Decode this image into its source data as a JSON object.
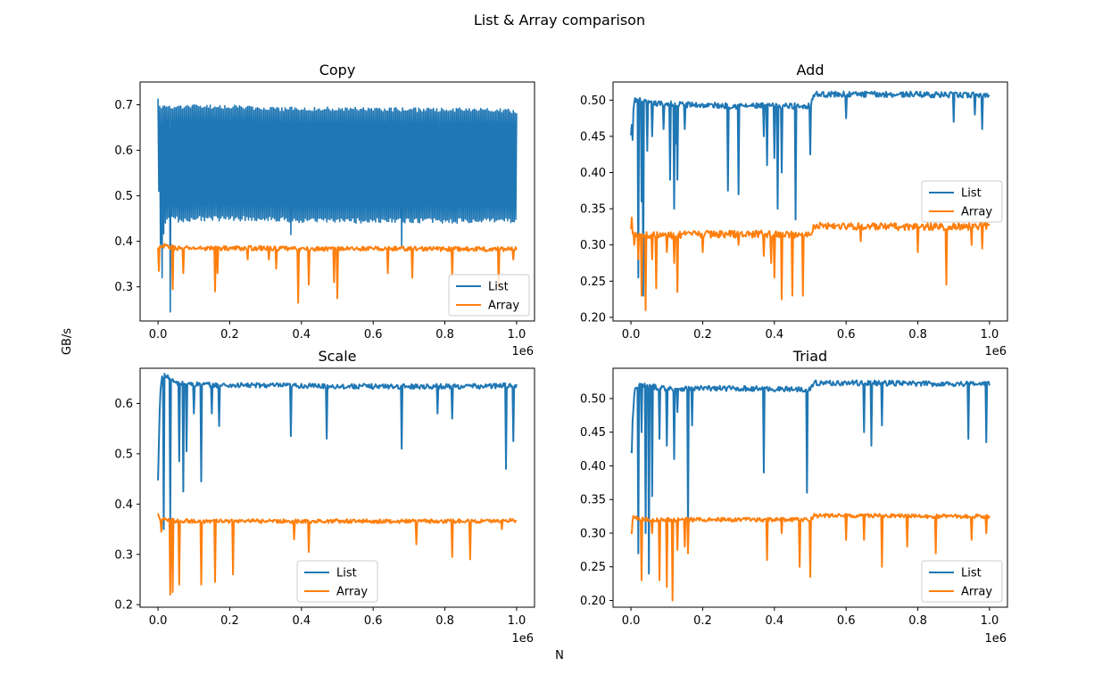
{
  "figure": {
    "suptitle": "List & Array comparison",
    "xlabel": "N",
    "ylabel": "GB/s"
  },
  "colors": {
    "list": "#1f77b4",
    "array": "#ff7f0e"
  },
  "chart_data": [
    {
      "type": "line",
      "title": "Copy",
      "x_multiplier_label": "1e6",
      "xlim": [
        -0.05,
        1.05
      ],
      "ylim": [
        0.225,
        0.75
      ],
      "xticks": [
        0.0,
        0.2,
        0.4,
        0.6,
        0.8,
        1.0
      ],
      "xtick_labels": [
        "0.0",
        "0.2",
        "0.4",
        "0.6",
        "0.8",
        "1.0"
      ],
      "yticks": [
        0.3,
        0.4,
        0.5,
        0.6,
        0.7
      ],
      "ytick_labels": [
        "0.3",
        "0.4",
        "0.5",
        "0.6",
        "0.7"
      ],
      "legend": {
        "placement": "lower-right",
        "entries": [
          "List",
          "Array"
        ]
      },
      "series": [
        {
          "name": "List",
          "pattern": "oscillating-band",
          "x": [
            0.0,
            0.005,
            0.01,
            0.02,
            0.04,
            0.06,
            0.1,
            0.2,
            0.3,
            0.4,
            0.5,
            0.6,
            0.7,
            0.8,
            0.9,
            1.0
          ],
          "upper": [
            0.72,
            0.7,
            0.7,
            0.7,
            0.7,
            0.7,
            0.7,
            0.7,
            0.695,
            0.695,
            0.695,
            0.695,
            0.693,
            0.693,
            0.693,
            0.69
          ],
          "lower": [
            0.58,
            0.4,
            0.36,
            0.44,
            0.45,
            0.44,
            0.445,
            0.445,
            0.445,
            0.44,
            0.44,
            0.44,
            0.44,
            0.44,
            0.44,
            0.44
          ],
          "dips": [
            [
              0.012,
              0.32
            ],
            [
              0.035,
              0.245
            ],
            [
              0.37,
              0.415
            ],
            [
              0.68,
              0.39
            ]
          ]
        },
        {
          "name": "Array",
          "x": [
            0.0,
            0.02,
            0.05,
            0.1,
            0.2,
            0.3,
            0.4,
            0.5,
            0.6,
            0.7,
            0.8,
            0.9,
            1.0
          ],
          "y": [
            0.385,
            0.39,
            0.385,
            0.385,
            0.385,
            0.385,
            0.383,
            0.384,
            0.384,
            0.384,
            0.383,
            0.383,
            0.383
          ],
          "noise": 0.005,
          "dips": [
            [
              0.003,
              0.335
            ],
            [
              0.04,
              0.295
            ],
            [
              0.07,
              0.33
            ],
            [
              0.16,
              0.29
            ],
            [
              0.165,
              0.33
            ],
            [
              0.25,
              0.36
            ],
            [
              0.31,
              0.36
            ],
            [
              0.33,
              0.34
            ],
            [
              0.39,
              0.265
            ],
            [
              0.42,
              0.305
            ],
            [
              0.49,
              0.31
            ],
            [
              0.5,
              0.275
            ],
            [
              0.64,
              0.33
            ],
            [
              0.71,
              0.32
            ],
            [
              0.82,
              0.325
            ],
            [
              0.95,
              0.3
            ],
            [
              0.99,
              0.36
            ]
          ]
        }
      ]
    },
    {
      "type": "line",
      "title": "Add",
      "x_multiplier_label": "1e6",
      "xlim": [
        -0.05,
        1.05
      ],
      "ylim": [
        0.195,
        0.525
      ],
      "xticks": [
        0.0,
        0.2,
        0.4,
        0.6,
        0.8,
        1.0
      ],
      "xtick_labels": [
        "0.0",
        "0.2",
        "0.4",
        "0.6",
        "0.8",
        "1.0"
      ],
      "yticks": [
        0.2,
        0.25,
        0.3,
        0.35,
        0.4,
        0.45,
        0.5
      ],
      "ytick_labels": [
        "0.20",
        "0.25",
        "0.30",
        "0.35",
        "0.40",
        "0.45",
        "0.50"
      ],
      "legend": {
        "placement": "center-right",
        "entries": [
          "List",
          "Array"
        ]
      },
      "series": [
        {
          "name": "List",
          "x": [
            0.0,
            0.005,
            0.01,
            0.02,
            0.05,
            0.1,
            0.2,
            0.3,
            0.4,
            0.5,
            0.51,
            0.6,
            0.7,
            0.8,
            0.9,
            1.0
          ],
          "y": [
            0.45,
            0.48,
            0.5,
            0.5,
            0.495,
            0.495,
            0.493,
            0.492,
            0.492,
            0.492,
            0.508,
            0.508,
            0.508,
            0.508,
            0.507,
            0.507
          ],
          "noise": 0.004,
          "dips": [
            [
              0.004,
              0.445
            ],
            [
              0.02,
              0.255
            ],
            [
              0.03,
              0.36
            ],
            [
              0.035,
              0.23
            ],
            [
              0.045,
              0.43
            ],
            [
              0.06,
              0.45
            ],
            [
              0.09,
              0.46
            ],
            [
              0.11,
              0.39
            ],
            [
              0.12,
              0.35
            ],
            [
              0.125,
              0.44
            ],
            [
              0.13,
              0.39
            ],
            [
              0.15,
              0.46
            ],
            [
              0.27,
              0.375
            ],
            [
              0.3,
              0.37
            ],
            [
              0.37,
              0.45
            ],
            [
              0.38,
              0.41
            ],
            [
              0.4,
              0.42
            ],
            [
              0.41,
              0.35
            ],
            [
              0.42,
              0.4
            ],
            [
              0.46,
              0.335
            ],
            [
              0.5,
              0.425
            ],
            [
              0.6,
              0.475
            ],
            [
              0.9,
              0.47
            ],
            [
              0.96,
              0.48
            ],
            [
              0.98,
              0.46
            ]
          ]
        },
        {
          "name": "Array",
          "x": [
            0.0,
            0.02,
            0.05,
            0.1,
            0.2,
            0.3,
            0.4,
            0.5,
            0.51,
            0.6,
            0.7,
            0.8,
            0.9,
            1.0
          ],
          "y": [
            0.32,
            0.315,
            0.313,
            0.313,
            0.315,
            0.315,
            0.315,
            0.314,
            0.327,
            0.326,
            0.325,
            0.325,
            0.325,
            0.326
          ],
          "noise": 0.005,
          "dips": [
            [
              0.003,
              0.338
            ],
            [
              0.008,
              0.3
            ],
            [
              0.02,
              0.28
            ],
            [
              0.03,
              0.23
            ],
            [
              0.04,
              0.21
            ],
            [
              0.06,
              0.28
            ],
            [
              0.07,
              0.24
            ],
            [
              0.1,
              0.29
            ],
            [
              0.12,
              0.275
            ],
            [
              0.13,
              0.235
            ],
            [
              0.2,
              0.29
            ],
            [
              0.3,
              0.3
            ],
            [
              0.37,
              0.285
            ],
            [
              0.39,
              0.275
            ],
            [
              0.4,
              0.255
            ],
            [
              0.42,
              0.225
            ],
            [
              0.45,
              0.23
            ],
            [
              0.48,
              0.23
            ],
            [
              0.64,
              0.305
            ],
            [
              0.8,
              0.29
            ],
            [
              0.88,
              0.245
            ],
            [
              0.95,
              0.3
            ],
            [
              0.98,
              0.295
            ]
          ]
        }
      ]
    },
    {
      "type": "line",
      "title": "Scale",
      "x_multiplier_label": "1e6",
      "xlim": [
        -0.05,
        1.05
      ],
      "ylim": [
        0.195,
        0.67
      ],
      "xticks": [
        0.0,
        0.2,
        0.4,
        0.6,
        0.8,
        1.0
      ],
      "xtick_labels": [
        "0.0",
        "0.2",
        "0.4",
        "0.6",
        "0.8",
        "1.0"
      ],
      "yticks": [
        0.2,
        0.3,
        0.4,
        0.5,
        0.6
      ],
      "ytick_labels": [
        "0.2",
        "0.3",
        "0.4",
        "0.5",
        "0.6"
      ],
      "legend": {
        "placement": "lower-center",
        "entries": [
          "List",
          "Array"
        ]
      },
      "series": [
        {
          "name": "List",
          "x": [
            0.0,
            0.005,
            0.01,
            0.02,
            0.05,
            0.1,
            0.2,
            0.3,
            0.4,
            0.5,
            0.6,
            0.7,
            0.8,
            0.9,
            1.0
          ],
          "y": [
            0.445,
            0.6,
            0.655,
            0.655,
            0.64,
            0.638,
            0.636,
            0.636,
            0.635,
            0.634,
            0.634,
            0.634,
            0.634,
            0.634,
            0.636
          ],
          "noise": 0.005,
          "dips": [
            [
              0.015,
              0.35
            ],
            [
              0.035,
              0.37
            ],
            [
              0.06,
              0.485
            ],
            [
              0.07,
              0.425
            ],
            [
              0.08,
              0.505
            ],
            [
              0.1,
              0.58
            ],
            [
              0.12,
              0.445
            ],
            [
              0.15,
              0.58
            ],
            [
              0.17,
              0.555
            ],
            [
              0.37,
              0.535
            ],
            [
              0.47,
              0.53
            ],
            [
              0.68,
              0.51
            ],
            [
              0.78,
              0.58
            ],
            [
              0.82,
              0.57
            ],
            [
              0.97,
              0.47
            ],
            [
              0.99,
              0.525
            ]
          ]
        },
        {
          "name": "Array",
          "x": [
            0.0,
            0.005,
            0.01,
            0.02,
            0.05,
            0.1,
            0.2,
            0.3,
            0.4,
            0.5,
            0.6,
            0.7,
            0.8,
            0.9,
            1.0
          ],
          "y": [
            0.38,
            0.37,
            0.37,
            0.368,
            0.367,
            0.366,
            0.366,
            0.366,
            0.366,
            0.366,
            0.366,
            0.366,
            0.366,
            0.366,
            0.368
          ],
          "noise": 0.004,
          "dips": [
            [
              0.01,
              0.345
            ],
            [
              0.035,
              0.22
            ],
            [
              0.04,
              0.225
            ],
            [
              0.06,
              0.24
            ],
            [
              0.12,
              0.24
            ],
            [
              0.16,
              0.245
            ],
            [
              0.21,
              0.26
            ],
            [
              0.38,
              0.33
            ],
            [
              0.42,
              0.305
            ],
            [
              0.72,
              0.32
            ],
            [
              0.82,
              0.295
            ],
            [
              0.87,
              0.29
            ],
            [
              0.96,
              0.35
            ]
          ]
        }
      ]
    },
    {
      "type": "line",
      "title": "Triad",
      "x_multiplier_label": "1e6",
      "xlim": [
        -0.05,
        1.05
      ],
      "ylim": [
        0.19,
        0.545
      ],
      "xticks": [
        0.0,
        0.2,
        0.4,
        0.6,
        0.8,
        1.0
      ],
      "xtick_labels": [
        "0.0",
        "0.2",
        "0.4",
        "0.6",
        "0.8",
        "1.0"
      ],
      "yticks": [
        0.2,
        0.25,
        0.3,
        0.35,
        0.4,
        0.45,
        0.5
      ],
      "ytick_labels": [
        "0.20",
        "0.25",
        "0.30",
        "0.35",
        "0.40",
        "0.45",
        "0.50"
      ],
      "legend": {
        "placement": "lower-right",
        "entries": [
          "List",
          "Array"
        ]
      },
      "series": [
        {
          "name": "List",
          "x": [
            0.0,
            0.005,
            0.01,
            0.02,
            0.05,
            0.1,
            0.2,
            0.3,
            0.4,
            0.5,
            0.51,
            0.6,
            0.7,
            0.8,
            0.9,
            1.0
          ],
          "y": [
            0.42,
            0.47,
            0.51,
            0.52,
            0.518,
            0.515,
            0.515,
            0.515,
            0.514,
            0.514,
            0.523,
            0.523,
            0.523,
            0.522,
            0.522,
            0.522
          ],
          "noise": 0.004,
          "dips": [
            [
              0.003,
              0.42
            ],
            [
              0.02,
              0.27
            ],
            [
              0.03,
              0.45
            ],
            [
              0.04,
              0.3
            ],
            [
              0.05,
              0.24
            ],
            [
              0.06,
              0.355
            ],
            [
              0.08,
              0.44
            ],
            [
              0.1,
              0.43
            ],
            [
              0.12,
              0.41
            ],
            [
              0.13,
              0.48
            ],
            [
              0.16,
              0.3
            ],
            [
              0.17,
              0.46
            ],
            [
              0.37,
              0.39
            ],
            [
              0.49,
              0.36
            ],
            [
              0.65,
              0.45
            ],
            [
              0.67,
              0.43
            ],
            [
              0.7,
              0.46
            ],
            [
              0.94,
              0.44
            ],
            [
              0.99,
              0.435
            ]
          ]
        },
        {
          "name": "Array",
          "x": [
            0.0,
            0.005,
            0.01,
            0.02,
            0.05,
            0.1,
            0.2,
            0.3,
            0.4,
            0.5,
            0.51,
            0.6,
            0.7,
            0.8,
            0.9,
            1.0
          ],
          "y": [
            0.3,
            0.325,
            0.325,
            0.322,
            0.32,
            0.32,
            0.32,
            0.32,
            0.32,
            0.32,
            0.326,
            0.326,
            0.326,
            0.325,
            0.325,
            0.325
          ],
          "noise": 0.003,
          "dips": [
            [
              0.003,
              0.3
            ],
            [
              0.03,
              0.23
            ],
            [
              0.06,
              0.3
            ],
            [
              0.08,
              0.23
            ],
            [
              0.1,
              0.22
            ],
            [
              0.115,
              0.2
            ],
            [
              0.13,
              0.275
            ],
            [
              0.15,
              0.28
            ],
            [
              0.16,
              0.27
            ],
            [
              0.38,
              0.26
            ],
            [
              0.42,
              0.3
            ],
            [
              0.47,
              0.25
            ],
            [
              0.5,
              0.235
            ],
            [
              0.6,
              0.29
            ],
            [
              0.65,
              0.29
            ],
            [
              0.7,
              0.25
            ],
            [
              0.77,
              0.28
            ],
            [
              0.85,
              0.27
            ],
            [
              0.95,
              0.29
            ],
            [
              0.99,
              0.3
            ]
          ]
        }
      ]
    }
  ]
}
